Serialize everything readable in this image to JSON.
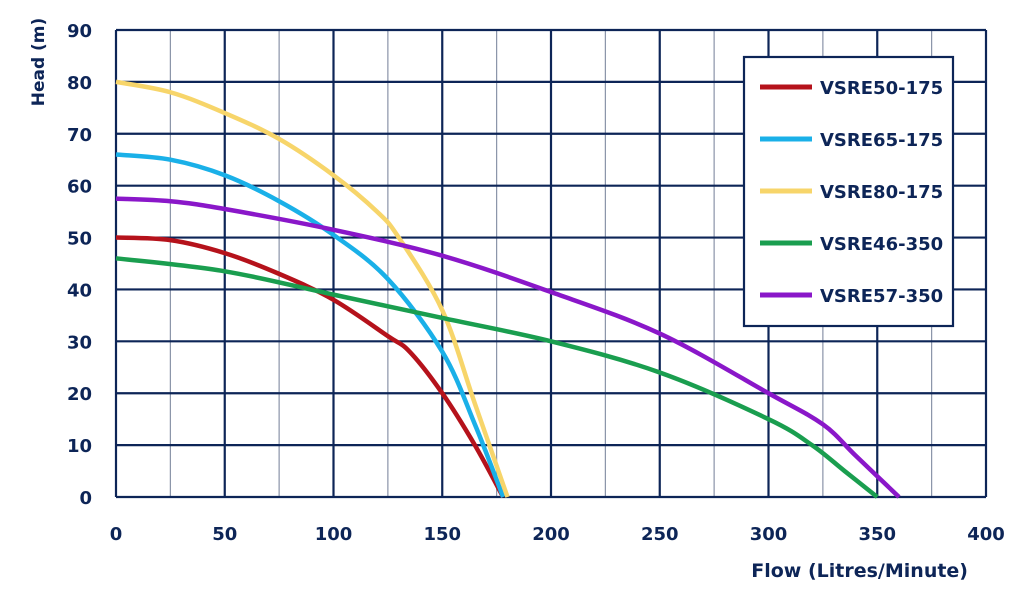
{
  "chart_data": {
    "type": "line",
    "xlabel": "Flow (Litres/Minute)",
    "ylabel": "Head (m)",
    "xlim": [
      0,
      400
    ],
    "ylim": [
      0,
      90
    ],
    "xticks": [
      0,
      50,
      100,
      150,
      200,
      250,
      300,
      350,
      400
    ],
    "yticks": [
      0,
      10,
      20,
      30,
      40,
      50,
      60,
      70,
      80,
      90
    ],
    "grid": true,
    "legend_position": "top-right",
    "axis_color": "#0d2557",
    "series": [
      {
        "name": "VSRE50-175",
        "color": "#b5121b",
        "x": [
          0,
          25,
          50,
          75,
          100,
          125,
          135,
          150,
          165,
          178
        ],
        "y": [
          50,
          49.5,
          47,
          43,
          38,
          31,
          28,
          20,
          10,
          0
        ]
      },
      {
        "name": "VSRE65-175",
        "color": "#1ab0e8",
        "x": [
          0,
          25,
          50,
          75,
          100,
          125,
          150,
          165,
          178
        ],
        "y": [
          66,
          65,
          62,
          57,
          50.5,
          42,
          28,
          14,
          0
        ]
      },
      {
        "name": "VSRE80-175",
        "color": "#f7d56a",
        "x": [
          0,
          25,
          50,
          75,
          100,
          120,
          130,
          150,
          165,
          180
        ],
        "y": [
          80,
          78,
          74,
          69,
          62,
          55,
          50,
          36,
          18,
          0
        ]
      },
      {
        "name": "VSRE46-350",
        "color": "#1a9e4f",
        "x": [
          0,
          50,
          100,
          150,
          200,
          250,
          300,
          320,
          335,
          350
        ],
        "y": [
          46,
          43.5,
          39,
          34.5,
          30,
          24,
          15,
          10,
          5,
          0
        ]
      },
      {
        "name": "VSRE57-350",
        "color": "#8a17c9",
        "x": [
          0,
          25,
          50,
          100,
          150,
          200,
          250,
          300,
          325,
          340,
          360
        ],
        "y": [
          57.5,
          57,
          55.5,
          51.5,
          46.5,
          39.5,
          31.5,
          20,
          14,
          8,
          0
        ]
      }
    ]
  }
}
